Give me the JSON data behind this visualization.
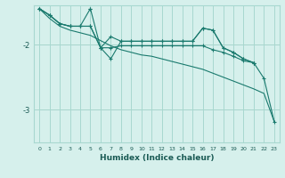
{
  "xlabel": "Humidex (Indice chaleur)",
  "bg_color": "#d6f0ec",
  "grid_color": "#a8d8d0",
  "line_color": "#1a7a6e",
  "xlim": [
    -0.5,
    23.5
  ],
  "ylim": [
    -3.5,
    -1.4
  ],
  "yticks": [
    -3,
    -2
  ],
  "series": [
    {
      "x": [
        0,
        1,
        2,
        3,
        4,
        5,
        6,
        7,
        8,
        9,
        10,
        11,
        12,
        13,
        14,
        15,
        16,
        17,
        18,
        19,
        20,
        21,
        22,
        23
      ],
      "y": [
        -1.45,
        -1.6,
        -1.72,
        -1.78,
        -1.82,
        -1.86,
        -1.94,
        -2.02,
        -2.08,
        -2.12,
        -2.16,
        -2.18,
        -2.22,
        -2.26,
        -2.3,
        -2.34,
        -2.38,
        -2.44,
        -2.5,
        -2.56,
        -2.62,
        -2.68,
        -2.75,
        -3.18
      ],
      "marker": false
    },
    {
      "x": [
        0,
        1,
        2,
        3,
        4,
        5,
        5,
        6,
        7,
        8,
        9,
        10,
        11,
        12,
        13,
        14,
        15,
        16,
        17,
        18,
        19,
        20,
        21
      ],
      "y": [
        -1.45,
        -1.55,
        -1.68,
        -1.72,
        -1.72,
        -1.45,
        -1.45,
        -2.05,
        -2.22,
        -1.95,
        -1.95,
        -1.95,
        -1.95,
        -1.95,
        -1.95,
        -1.95,
        -1.95,
        -1.75,
        -1.78,
        -2.05,
        -2.12,
        -2.22,
        -2.28
      ],
      "marker": true
    },
    {
      "x": [
        0,
        1,
        2,
        3,
        4,
        5,
        6,
        7,
        8,
        9,
        10,
        11,
        12,
        13,
        14,
        15,
        16,
        17,
        18,
        19,
        20,
        21
      ],
      "y": [
        -1.45,
        -1.55,
        -1.68,
        -1.72,
        -1.72,
        -1.72,
        -2.05,
        -1.88,
        -1.95,
        -1.95,
        -1.95,
        -1.95,
        -1.95,
        -1.95,
        -1.95,
        -1.95,
        -1.75,
        -1.78,
        -2.05,
        -2.12,
        -2.22,
        -2.28
      ],
      "marker": true
    },
    {
      "x": [
        0,
        1,
        2,
        3,
        4,
        5,
        6,
        7,
        8,
        9,
        10,
        11,
        12,
        13,
        14,
        15,
        16,
        17,
        18,
        19,
        20,
        21,
        22,
        23
      ],
      "y": [
        -1.45,
        -1.55,
        -1.68,
        -1.72,
        -1.72,
        -1.72,
        -2.05,
        -2.05,
        -2.02,
        -2.02,
        -2.02,
        -2.02,
        -2.02,
        -2.02,
        -2.02,
        -2.02,
        -2.02,
        -2.08,
        -2.12,
        -2.18,
        -2.25,
        -2.28,
        -2.52,
        -3.18
      ],
      "marker": true
    }
  ]
}
